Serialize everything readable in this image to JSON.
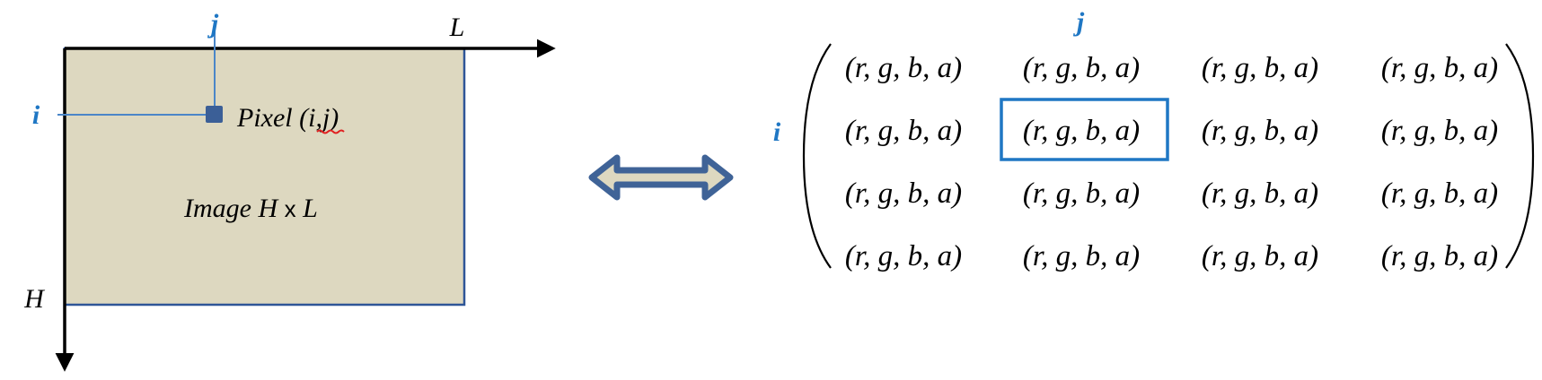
{
  "colors": {
    "image_fill": "#ddd8c0",
    "image_border": "#2e5597",
    "pointer_line": "#4a86c8",
    "pixel_square": "#3b5f97",
    "index_label": "#1f77c4",
    "highlight_box": "#1f77c4",
    "arrow_outer": "#3f6397",
    "arrow_inner": "#ddd8c0",
    "axis": "#000000",
    "spellcheck_underline": "#e02020"
  },
  "left_image": {
    "col_index_label": "j",
    "row_index_label": "i",
    "width_label": "L",
    "height_label": "H",
    "pixel_label": "Pixel (i,j)",
    "image_label_prefix": "Image H ",
    "image_label_times": "x",
    "image_label_suffix": " L"
  },
  "equivalence_icon": "double-headed-arrow-icon",
  "matrix": {
    "col_label": "j",
    "row_label": "i",
    "highlight_cell": {
      "row": 1,
      "col": 1
    },
    "rows": [
      [
        "(r, g, b, a)",
        "(r, g, b, a)",
        "(r, g, b, a)",
        "(r, g, b, a)"
      ],
      [
        "(r, g, b, a)",
        "(r, g, b, a)",
        "(r, g, b, a)",
        "(r, g, b, a)"
      ],
      [
        "(r, g, b, a)",
        "(r, g, b, a)",
        "(r, g, b, a)",
        "(r, g, b, a)"
      ],
      [
        "(r, g, b, a)",
        "(r, g, b, a)",
        "(r, g, b, a)",
        "(r, g, b, a)"
      ]
    ]
  }
}
